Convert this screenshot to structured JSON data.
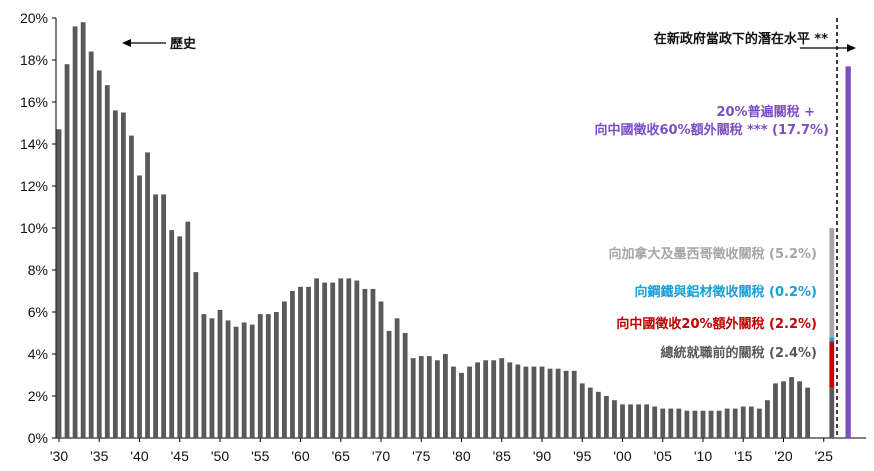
{
  "chart_data": {
    "type": "bar",
    "ylabel": "",
    "xlabel": "",
    "ylim": [
      0,
      20
    ],
    "yticks": [
      "0%",
      "2%",
      "4%",
      "6%",
      "8%",
      "10%",
      "12%",
      "14%",
      "16%",
      "18%",
      "20%"
    ],
    "xticks": [
      "'30",
      "'35",
      "'40",
      "'45",
      "'50",
      "'55",
      "'60",
      "'65",
      "'70",
      "'75",
      "'80",
      "'85",
      "'90",
      "'95",
      "'00",
      "'05",
      "'10",
      "'15",
      "'20",
      "'25"
    ],
    "grid": false,
    "series": [
      {
        "name": "歷史",
        "color": "#595959",
        "years": [
          1930,
          1931,
          1932,
          1933,
          1934,
          1935,
          1936,
          1937,
          1938,
          1939,
          1940,
          1941,
          1942,
          1943,
          1944,
          1945,
          1946,
          1947,
          1948,
          1949,
          1950,
          1951,
          1952,
          1953,
          1954,
          1955,
          1956,
          1957,
          1958,
          1959,
          1960,
          1961,
          1962,
          1963,
          1964,
          1965,
          1966,
          1967,
          1968,
          1969,
          1970,
          1971,
          1972,
          1973,
          1974,
          1975,
          1976,
          1977,
          1978,
          1979,
          1980,
          1981,
          1982,
          1983,
          1984,
          1985,
          1986,
          1987,
          1988,
          1989,
          1990,
          1991,
          1992,
          1993,
          1994,
          1995,
          1996,
          1997,
          1998,
          1999,
          2000,
          2001,
          2002,
          2003,
          2004,
          2005,
          2006,
          2007,
          2008,
          2009,
          2010,
          2011,
          2012,
          2013,
          2014,
          2015,
          2016,
          2017,
          2018,
          2019,
          2020,
          2021,
          2022,
          2023
        ],
        "values": [
          14.7,
          17.8,
          19.6,
          19.8,
          18.4,
          17.5,
          16.8,
          15.6,
          15.5,
          14.4,
          12.5,
          13.6,
          11.6,
          11.6,
          9.9,
          9.6,
          10.3,
          7.9,
          5.9,
          5.7,
          6.1,
          5.6,
          5.3,
          5.5,
          5.4,
          5.9,
          5.9,
          6.0,
          6.5,
          7.0,
          7.2,
          7.2,
          7.6,
          7.4,
          7.4,
          7.6,
          7.6,
          7.5,
          7.1,
          7.1,
          6.5,
          5.1,
          5.7,
          5.0,
          3.8,
          3.9,
          3.9,
          3.7,
          4.0,
          3.4,
          3.1,
          3.4,
          3.6,
          3.7,
          3.7,
          3.8,
          3.6,
          3.5,
          3.4,
          3.4,
          3.4,
          3.3,
          3.3,
          3.2,
          3.2,
          2.6,
          2.4,
          2.2,
          2.0,
          1.8,
          1.6,
          1.6,
          1.6,
          1.6,
          1.5,
          1.4,
          1.4,
          1.4,
          1.3,
          1.3,
          1.3,
          1.3,
          1.3,
          1.4,
          1.4,
          1.5,
          1.5,
          1.4,
          1.8,
          2.6,
          2.7,
          2.9,
          2.7,
          2.4
        ]
      },
      {
        "name": "在新政府當政下的潛在水平 **",
        "year": 2026,
        "stack": [
          {
            "name": "總統就職前的關稅 (2.4%)",
            "value": 2.4,
            "color": "#595959"
          },
          {
            "name": "向中國徵收20%額外關稅 (2.2%)",
            "value": 2.2,
            "color": "#c00000"
          },
          {
            "name": "向鋼鐵與鋁材徵收關稅 (0.2%)",
            "value": 0.2,
            "color": "#1a9ed9"
          },
          {
            "name": "向加拿大及墨西哥徵收關稅 (5.2%)",
            "value": 5.2,
            "color": "#a6a6a6"
          }
        ]
      },
      {
        "name": "20%普遍關稅 + 向中國徵收60%額外關稅 *** (17.7%)",
        "year": 2028,
        "value": 17.7,
        "color": "#7b4fc4"
      }
    ]
  },
  "annotations": {
    "history_label": "歷史",
    "potential_label": "在新政府當政下的潛在水平 **",
    "universal_line1": "20%普遍關稅 +",
    "universal_line2": "向中國徵收60%額外關稅 *** (17.7%)",
    "canmex": "向加拿大及墨西哥徵收關稅 (5.2%)",
    "steel": "向鋼鐵與鋁材徵收關稅 (0.2%)",
    "china20": "向中國徵收20%額外關稅 (2.2%)",
    "pre": "總統就職前的關稅 (2.4%)"
  },
  "colors": {
    "universal": "#7b4fc4",
    "canmex": "#a6a6a6",
    "steel": "#1a9ed9",
    "china20": "#c00000",
    "pre": "#595959"
  }
}
